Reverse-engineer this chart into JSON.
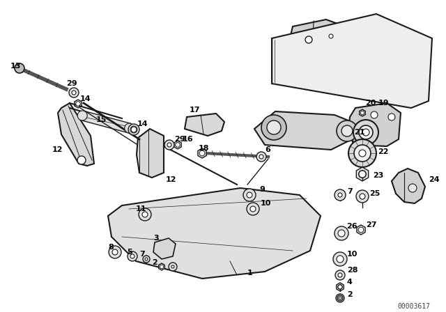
{
  "bg_color": "#ffffff",
  "line_color": "#1a1a1a",
  "part_fill": "#e8e8e8",
  "watermark": "00003617",
  "label_fontsize": 7.5,
  "label_color": "#000000"
}
